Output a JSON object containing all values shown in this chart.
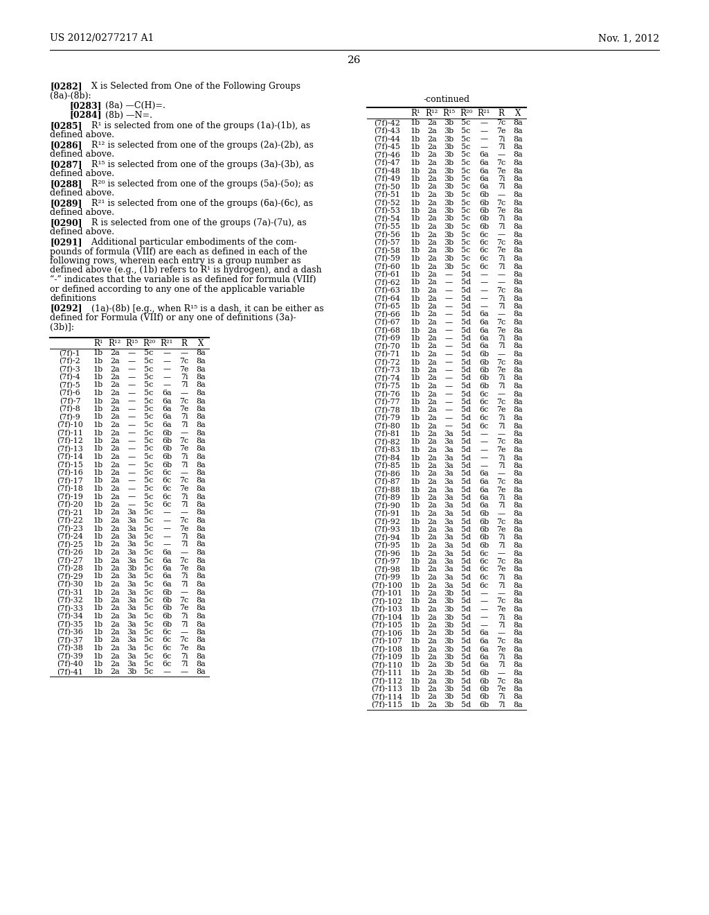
{
  "header_left": "US 2012/0277217 A1",
  "header_right": "Nov. 1, 2012",
  "page_number": "26",
  "table_header": [
    "",
    "R¹",
    "R¹²",
    "R¹⁵",
    "R²⁰",
    "R²¹",
    "R",
    "X"
  ],
  "table_data_left": [
    [
      "(7f)-1",
      "1b",
      "2a",
      "—",
      "5c",
      "—",
      "—",
      "8a"
    ],
    [
      "(7f)-2",
      "1b",
      "2a",
      "—",
      "5c",
      "—",
      "7c",
      "8a"
    ],
    [
      "(7f)-3",
      "1b",
      "2a",
      "—",
      "5c",
      "—",
      "7e",
      "8a"
    ],
    [
      "(7f)-4",
      "1b",
      "2a",
      "—",
      "5c",
      "—",
      "7i",
      "8a"
    ],
    [
      "(7f)-5",
      "1b",
      "2a",
      "—",
      "5c",
      "—",
      "7l",
      "8a"
    ],
    [
      "(7f)-6",
      "1b",
      "2a",
      "—",
      "5c",
      "6a",
      "—",
      "8a"
    ],
    [
      "(7f)-7",
      "1b",
      "2a",
      "—",
      "5c",
      "6a",
      "7c",
      "8a"
    ],
    [
      "(7f)-8",
      "1b",
      "2a",
      "—",
      "5c",
      "6a",
      "7e",
      "8a"
    ],
    [
      "(7f)-9",
      "1b",
      "2a",
      "—",
      "5c",
      "6a",
      "7i",
      "8a"
    ],
    [
      "(7f)-10",
      "1b",
      "2a",
      "—",
      "5c",
      "6a",
      "7l",
      "8a"
    ],
    [
      "(7f)-11",
      "1b",
      "2a",
      "—",
      "5c",
      "6b",
      "—",
      "8a"
    ],
    [
      "(7f)-12",
      "1b",
      "2a",
      "—",
      "5c",
      "6b",
      "7c",
      "8a"
    ],
    [
      "(7f)-13",
      "1b",
      "2a",
      "—",
      "5c",
      "6b",
      "7e",
      "8a"
    ],
    [
      "(7f)-14",
      "1b",
      "2a",
      "—",
      "5c",
      "6b",
      "7i",
      "8a"
    ],
    [
      "(7f)-15",
      "1b",
      "2a",
      "—",
      "5c",
      "6b",
      "7l",
      "8a"
    ],
    [
      "(7f)-16",
      "1b",
      "2a",
      "—",
      "5c",
      "6c",
      "—",
      "8a"
    ],
    [
      "(7f)-17",
      "1b",
      "2a",
      "—",
      "5c",
      "6c",
      "7c",
      "8a"
    ],
    [
      "(7f)-18",
      "1b",
      "2a",
      "—",
      "5c",
      "6c",
      "7e",
      "8a"
    ],
    [
      "(7f)-19",
      "1b",
      "2a",
      "—",
      "5c",
      "6c",
      "7i",
      "8a"
    ],
    [
      "(7f)-20",
      "1b",
      "2a",
      "—",
      "5c",
      "6c",
      "7l",
      "8a"
    ],
    [
      "(7f)-21",
      "1b",
      "2a",
      "3a",
      "5c",
      "—",
      "—",
      "8a"
    ],
    [
      "(7f)-22",
      "1b",
      "2a",
      "3a",
      "5c",
      "—",
      "7c",
      "8a"
    ],
    [
      "(7f)-23",
      "1b",
      "2a",
      "3a",
      "5c",
      "—",
      "7e",
      "8a"
    ],
    [
      "(7f)-24",
      "1b",
      "2a",
      "3a",
      "5c",
      "—",
      "7i",
      "8a"
    ],
    [
      "(7f)-25",
      "1b",
      "2a",
      "3a",
      "5c",
      "—",
      "7l",
      "8a"
    ],
    [
      "(7f)-26",
      "1b",
      "2a",
      "3a",
      "5c",
      "6a",
      "—",
      "8a"
    ],
    [
      "(7f)-27",
      "1b",
      "2a",
      "3a",
      "5c",
      "6a",
      "7c",
      "8a"
    ],
    [
      "(7f)-28",
      "1b",
      "2a",
      "3b",
      "5c",
      "6a",
      "7e",
      "8a"
    ],
    [
      "(7f)-29",
      "1b",
      "2a",
      "3a",
      "5c",
      "6a",
      "7i",
      "8a"
    ],
    [
      "(7f)-30",
      "1b",
      "2a",
      "3a",
      "5c",
      "6a",
      "7l",
      "8a"
    ],
    [
      "(7f)-31",
      "1b",
      "2a",
      "3a",
      "5c",
      "6b",
      "—",
      "8a"
    ],
    [
      "(7f)-32",
      "1b",
      "2a",
      "3a",
      "5c",
      "6b",
      "7c",
      "8a"
    ],
    [
      "(7f)-33",
      "1b",
      "2a",
      "3a",
      "5c",
      "6b",
      "7e",
      "8a"
    ],
    [
      "(7f)-34",
      "1b",
      "2a",
      "3a",
      "5c",
      "6b",
      "7i",
      "8a"
    ],
    [
      "(7f)-35",
      "1b",
      "2a",
      "3a",
      "5c",
      "6b",
      "7l",
      "8a"
    ],
    [
      "(7f)-36",
      "1b",
      "2a",
      "3a",
      "5c",
      "6c",
      "—",
      "8a"
    ],
    [
      "(7f)-37",
      "1b",
      "2a",
      "3a",
      "5c",
      "6c",
      "7c",
      "8a"
    ],
    [
      "(7f)-38",
      "1b",
      "2a",
      "3a",
      "5c",
      "6c",
      "7e",
      "8a"
    ],
    [
      "(7f)-39",
      "1b",
      "2a",
      "3a",
      "5c",
      "6c",
      "7i",
      "8a"
    ],
    [
      "(7f)-40",
      "1b",
      "2a",
      "3a",
      "5c",
      "6c",
      "7l",
      "8a"
    ],
    [
      "(7f)-41",
      "1b",
      "2a",
      "3b",
      "5c",
      "—",
      "—",
      "8a"
    ]
  ],
  "table_data_right": [
    [
      "(7f)-42",
      "1b",
      "2a",
      "3b",
      "5c",
      "—",
      "7c",
      "8a"
    ],
    [
      "(7f)-43",
      "1b",
      "2a",
      "3b",
      "5c",
      "—",
      "7e",
      "8a"
    ],
    [
      "(7f)-44",
      "1b",
      "2a",
      "3b",
      "5c",
      "—",
      "7i",
      "8a"
    ],
    [
      "(7f)-45",
      "1b",
      "2a",
      "3b",
      "5c",
      "—",
      "7l",
      "8a"
    ],
    [
      "(7f)-46",
      "1b",
      "2a",
      "3b",
      "5c",
      "6a",
      "—",
      "8a"
    ],
    [
      "(7f)-47",
      "1b",
      "2a",
      "3b",
      "5c",
      "6a",
      "7c",
      "8a"
    ],
    [
      "(7f)-48",
      "1b",
      "2a",
      "3b",
      "5c",
      "6a",
      "7e",
      "8a"
    ],
    [
      "(7f)-49",
      "1b",
      "2a",
      "3b",
      "5c",
      "6a",
      "7i",
      "8a"
    ],
    [
      "(7f)-50",
      "1b",
      "2a",
      "3b",
      "5c",
      "6a",
      "7l",
      "8a"
    ],
    [
      "(7f)-51",
      "1b",
      "2a",
      "3b",
      "5c",
      "6b",
      "—",
      "8a"
    ],
    [
      "(7f)-52",
      "1b",
      "2a",
      "3b",
      "5c",
      "6b",
      "7c",
      "8a"
    ],
    [
      "(7f)-53",
      "1b",
      "2a",
      "3b",
      "5c",
      "6b",
      "7e",
      "8a"
    ],
    [
      "(7f)-54",
      "1b",
      "2a",
      "3b",
      "5c",
      "6b",
      "7i",
      "8a"
    ],
    [
      "(7f)-55",
      "1b",
      "2a",
      "3b",
      "5c",
      "6b",
      "7l",
      "8a"
    ],
    [
      "(7f)-56",
      "1b",
      "2a",
      "3b",
      "5c",
      "6c",
      "—",
      "8a"
    ],
    [
      "(7f)-57",
      "1b",
      "2a",
      "3b",
      "5c",
      "6c",
      "7c",
      "8a"
    ],
    [
      "(7f)-58",
      "1b",
      "2a",
      "3b",
      "5c",
      "6c",
      "7e",
      "8a"
    ],
    [
      "(7f)-59",
      "1b",
      "2a",
      "3b",
      "5c",
      "6c",
      "7i",
      "8a"
    ],
    [
      "(7f)-60",
      "1b",
      "2a",
      "3b",
      "5c",
      "6c",
      "7l",
      "8a"
    ],
    [
      "(7f)-61",
      "1b",
      "2a",
      "—",
      "5d",
      "—",
      "—",
      "8a"
    ],
    [
      "(7f)-62",
      "1b",
      "2a",
      "—",
      "5d",
      "—",
      "—",
      "8a"
    ],
    [
      "(7f)-63",
      "1b",
      "2a",
      "—",
      "5d",
      "—",
      "7c",
      "8a"
    ],
    [
      "(7f)-64",
      "1b",
      "2a",
      "—",
      "5d",
      "—",
      "7i",
      "8a"
    ],
    [
      "(7f)-65",
      "1b",
      "2a",
      "—",
      "5d",
      "—",
      "7l",
      "8a"
    ],
    [
      "(7f)-66",
      "1b",
      "2a",
      "—",
      "5d",
      "6a",
      "—",
      "8a"
    ],
    [
      "(7f)-67",
      "1b",
      "2a",
      "—",
      "5d",
      "6a",
      "7c",
      "8a"
    ],
    [
      "(7f)-68",
      "1b",
      "2a",
      "—",
      "5d",
      "6a",
      "7e",
      "8a"
    ],
    [
      "(7f)-69",
      "1b",
      "2a",
      "—",
      "5d",
      "6a",
      "7i",
      "8a"
    ],
    [
      "(7f)-70",
      "1b",
      "2a",
      "—",
      "5d",
      "6a",
      "7l",
      "8a"
    ],
    [
      "(7f)-71",
      "1b",
      "2a",
      "—",
      "5d",
      "6b",
      "—",
      "8a"
    ],
    [
      "(7f)-72",
      "1b",
      "2a",
      "—",
      "5d",
      "6b",
      "7c",
      "8a"
    ],
    [
      "(7f)-73",
      "1b",
      "2a",
      "—",
      "5d",
      "6b",
      "7e",
      "8a"
    ],
    [
      "(7f)-74",
      "1b",
      "2a",
      "—",
      "5d",
      "6b",
      "7i",
      "8a"
    ],
    [
      "(7f)-75",
      "1b",
      "2a",
      "—",
      "5d",
      "6b",
      "7l",
      "8a"
    ],
    [
      "(7f)-76",
      "1b",
      "2a",
      "—",
      "5d",
      "6c",
      "—",
      "8a"
    ],
    [
      "(7f)-77",
      "1b",
      "2a",
      "—",
      "5d",
      "6c",
      "7c",
      "8a"
    ],
    [
      "(7f)-78",
      "1b",
      "2a",
      "—",
      "5d",
      "6c",
      "7e",
      "8a"
    ],
    [
      "(7f)-79",
      "1b",
      "2a",
      "—",
      "5d",
      "6c",
      "7i",
      "8a"
    ],
    [
      "(7f)-80",
      "1b",
      "2a",
      "—",
      "5d",
      "6c",
      "7l",
      "8a"
    ],
    [
      "(7f)-81",
      "1b",
      "2a",
      "3a",
      "5d",
      "—",
      "—",
      "8a"
    ],
    [
      "(7f)-82",
      "1b",
      "2a",
      "3a",
      "5d",
      "—",
      "7c",
      "8a"
    ],
    [
      "(7f)-83",
      "1b",
      "2a",
      "3a",
      "5d",
      "—",
      "7e",
      "8a"
    ],
    [
      "(7f)-84",
      "1b",
      "2a",
      "3a",
      "5d",
      "—",
      "7i",
      "8a"
    ],
    [
      "(7f)-85",
      "1b",
      "2a",
      "3a",
      "5d",
      "—",
      "7l",
      "8a"
    ],
    [
      "(7f)-86",
      "1b",
      "2a",
      "3a",
      "5d",
      "6a",
      "—",
      "8a"
    ],
    [
      "(7f)-87",
      "1b",
      "2a",
      "3a",
      "5d",
      "6a",
      "7c",
      "8a"
    ],
    [
      "(7f)-88",
      "1b",
      "2a",
      "3a",
      "5d",
      "6a",
      "7e",
      "8a"
    ],
    [
      "(7f)-89",
      "1b",
      "2a",
      "3a",
      "5d",
      "6a",
      "7i",
      "8a"
    ],
    [
      "(7f)-90",
      "1b",
      "2a",
      "3a",
      "5d",
      "6a",
      "7l",
      "8a"
    ],
    [
      "(7f)-91",
      "1b",
      "2a",
      "3a",
      "5d",
      "6b",
      "—",
      "8a"
    ],
    [
      "(7f)-92",
      "1b",
      "2a",
      "3a",
      "5d",
      "6b",
      "7c",
      "8a"
    ],
    [
      "(7f)-93",
      "1b",
      "2a",
      "3a",
      "5d",
      "6b",
      "7e",
      "8a"
    ],
    [
      "(7f)-94",
      "1b",
      "2a",
      "3a",
      "5d",
      "6b",
      "7i",
      "8a"
    ],
    [
      "(7f)-95",
      "1b",
      "2a",
      "3a",
      "5d",
      "6b",
      "7l",
      "8a"
    ],
    [
      "(7f)-96",
      "1b",
      "2a",
      "3a",
      "5d",
      "6c",
      "—",
      "8a"
    ],
    [
      "(7f)-97",
      "1b",
      "2a",
      "3a",
      "5d",
      "6c",
      "7c",
      "8a"
    ],
    [
      "(7f)-98",
      "1b",
      "2a",
      "3a",
      "5d",
      "6c",
      "7e",
      "8a"
    ],
    [
      "(7f)-99",
      "1b",
      "2a",
      "3a",
      "5d",
      "6c",
      "7i",
      "8a"
    ],
    [
      "(7f)-100",
      "1b",
      "2a",
      "3a",
      "5d",
      "6c",
      "7l",
      "8a"
    ],
    [
      "(7f)-101",
      "1b",
      "2a",
      "3b",
      "5d",
      "—",
      "—",
      "8a"
    ],
    [
      "(7f)-102",
      "1b",
      "2a",
      "3b",
      "5d",
      "—",
      "7c",
      "8a"
    ],
    [
      "(7f)-103",
      "1b",
      "2a",
      "3b",
      "5d",
      "—",
      "7e",
      "8a"
    ],
    [
      "(7f)-104",
      "1b",
      "2a",
      "3b",
      "5d",
      "—",
      "7i",
      "8a"
    ],
    [
      "(7f)-105",
      "1b",
      "2a",
      "3b",
      "5d",
      "—",
      "7l",
      "8a"
    ],
    [
      "(7f)-106",
      "1b",
      "2a",
      "3b",
      "5d",
      "6a",
      "—",
      "8a"
    ],
    [
      "(7f)-107",
      "1b",
      "2a",
      "3b",
      "5d",
      "6a",
      "7c",
      "8a"
    ],
    [
      "(7f)-108",
      "1b",
      "2a",
      "3b",
      "5d",
      "6a",
      "7e",
      "8a"
    ],
    [
      "(7f)-109",
      "1b",
      "2a",
      "3b",
      "5d",
      "6a",
      "7i",
      "8a"
    ],
    [
      "(7f)-110",
      "1b",
      "2a",
      "3b",
      "5d",
      "6a",
      "7l",
      "8a"
    ],
    [
      "(7f)-111",
      "1b",
      "2a",
      "3b",
      "5d",
      "6b",
      "—",
      "8a"
    ],
    [
      "(7f)-112",
      "1b",
      "2a",
      "3b",
      "5d",
      "6b",
      "7c",
      "8a"
    ],
    [
      "(7f)-113",
      "1b",
      "2a",
      "3b",
      "5d",
      "6b",
      "7e",
      "8a"
    ],
    [
      "(7f)-114",
      "1b",
      "2a",
      "3b",
      "5d",
      "6b",
      "7i",
      "8a"
    ],
    [
      "(7f)-115",
      "1b",
      "2a",
      "3b",
      "5d",
      "6b",
      "7l",
      "8a"
    ]
  ]
}
